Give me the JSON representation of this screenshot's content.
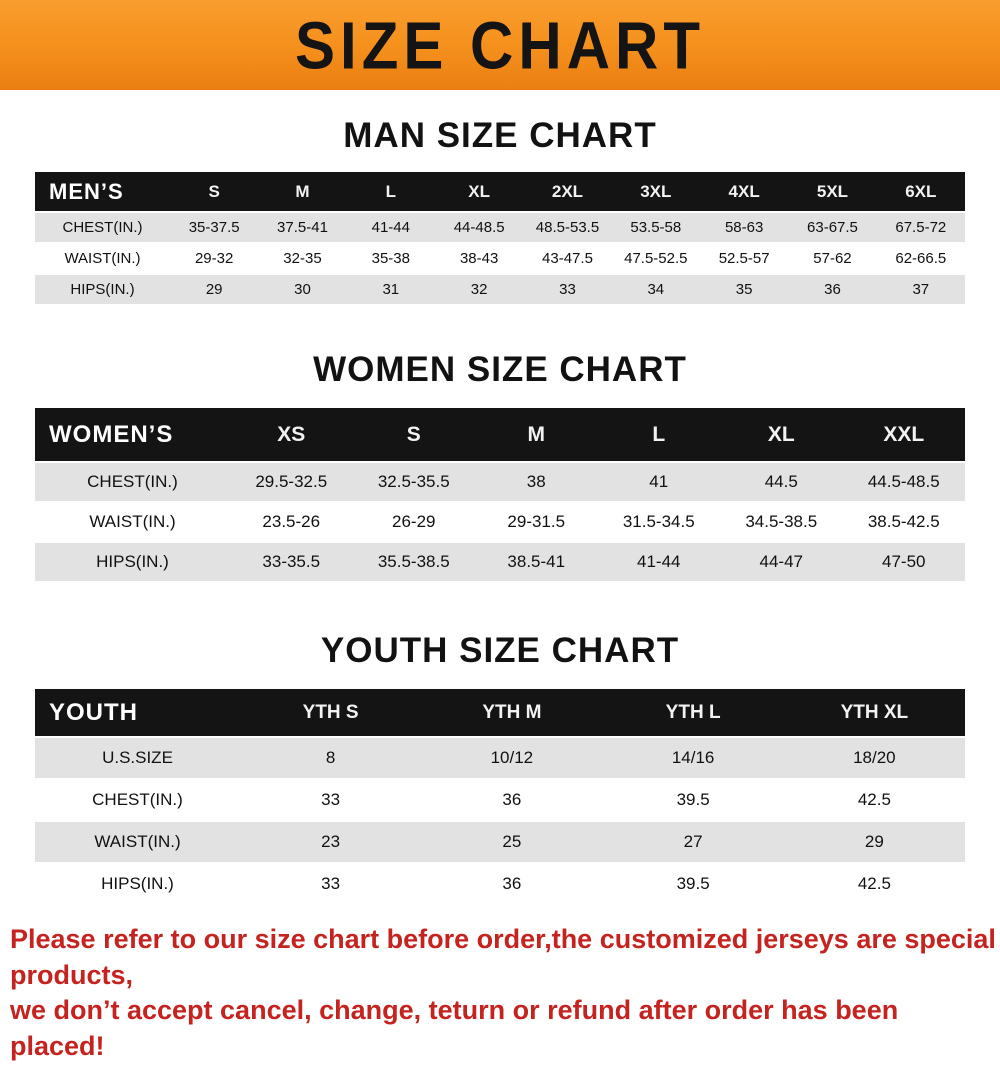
{
  "banner": {
    "title": "SIZE CHART"
  },
  "chart_data": [
    {
      "type": "table",
      "title": "MAN SIZE CHART",
      "columns": [
        "MEN’S",
        "S",
        "M",
        "L",
        "XL",
        "2XL",
        "3XL",
        "4XL",
        "5XL",
        "6XL"
      ],
      "rows": [
        [
          "CHEST(IN.)",
          "35-37.5",
          "37.5-41",
          "41-44",
          "44-48.5",
          "48.5-53.5",
          "53.5-58",
          "58-63",
          "63-67.5",
          "67.5-72"
        ],
        [
          "WAIST(IN.)",
          "29-32",
          "32-35",
          "35-38",
          "38-43",
          "43-47.5",
          "47.5-52.5",
          "52.5-57",
          "57-62",
          "62-66.5"
        ],
        [
          "HIPS(IN.)",
          "29",
          "30",
          "31",
          "32",
          "33",
          "34",
          "35",
          "36",
          "37"
        ]
      ]
    },
    {
      "type": "table",
      "title": "WOMEN SIZE CHART",
      "columns": [
        "WOMEN’S",
        "XS",
        "S",
        "M",
        "L",
        "XL",
        "XXL"
      ],
      "rows": [
        [
          "CHEST(IN.)",
          "29.5-32.5",
          "32.5-35.5",
          "38",
          "41",
          "44.5",
          "44.5-48.5"
        ],
        [
          "WAIST(IN.)",
          "23.5-26",
          "26-29",
          "29-31.5",
          "31.5-34.5",
          "34.5-38.5",
          "38.5-42.5"
        ],
        [
          "HIPS(IN.)",
          "33-35.5",
          "35.5-38.5",
          "38.5-41",
          "41-44",
          "44-47",
          "47-50"
        ]
      ]
    },
    {
      "type": "table",
      "title": "YOUTH SIZE CHART",
      "columns": [
        "YOUTH",
        "YTH S",
        "YTH M",
        "YTH L",
        "YTH XL"
      ],
      "rows": [
        [
          "U.S.SIZE",
          "8",
          "10/12",
          "14/16",
          "18/20"
        ],
        [
          "CHEST(IN.)",
          "33",
          "36",
          "39.5",
          "42.5"
        ],
        [
          "WAIST(IN.)",
          "23",
          "25",
          "27",
          "29"
        ],
        [
          "HIPS(IN.)",
          "33",
          "36",
          "39.5",
          "42.5"
        ]
      ]
    }
  ],
  "footer": {
    "line1": "Please refer to our size chart before order,the customized jerseys are special products,",
    "line2": "we don’t accept cancel, change, teturn or refund after order has been placed!"
  },
  "colors": {
    "banner_orange": "#f6921e",
    "table_header_black": "#141414",
    "row_stripe_gray": "#e2e2e2",
    "footer_red": "#c4231f"
  }
}
